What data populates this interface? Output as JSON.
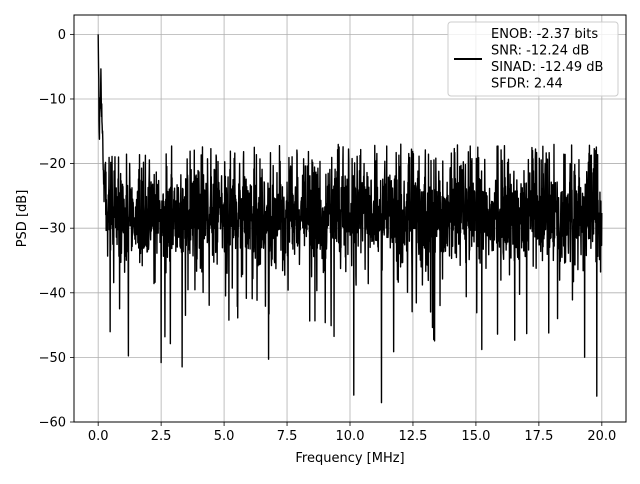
{
  "chart_data": {
    "type": "line",
    "title": "",
    "xlabel": "Frequency [MHz]",
    "ylabel": "PSD [dB]",
    "xlim": [
      -0.96,
      20.96
    ],
    "ylim": [
      -60,
      3
    ],
    "xticks": [
      0.0,
      2.5,
      5.0,
      7.5,
      10.0,
      12.5,
      15.0,
      17.5,
      20.0
    ],
    "xtick_labels": [
      "0.0",
      "2.5",
      "5.0",
      "7.5",
      "10.0",
      "12.5",
      "15.0",
      "17.5",
      "20.0"
    ],
    "yticks": [
      0,
      -10,
      -20,
      -30,
      -40,
      -50,
      -60
    ],
    "ytick_labels": [
      "0",
      "−10",
      "−20",
      "−30",
      "−40",
      "−50",
      "−60"
    ],
    "grid": true,
    "legend_position": "top-right",
    "legend": {
      "entries": [
        "ENOB: -2.37 bits",
        "SNR: -12.24 dB",
        "SINAD: -12.49 dB",
        "SFDR: 2.44"
      ]
    },
    "series": [
      {
        "color": "#000000",
        "description_points": {
          "x": [
            0.0,
            0.02,
            0.05,
            0.1,
            0.15,
            0.2,
            0.3,
            0.5,
            1.0,
            2.0,
            3.0,
            5.0,
            7.5,
            10.0,
            11.25,
            12.5,
            15.0,
            17.5,
            19.8,
            20.0
          ],
          "y": [
            0.0,
            -8.5,
            -16.0,
            -7.8,
            -13.5,
            -20.5,
            -22.0,
            -27.0,
            -28.0,
            -28.0,
            -28.0,
            -28.0,
            -28.0,
            -28.0,
            -57.0,
            -28.0,
            -28.0,
            -28.0,
            -56.0,
            -28.0
          ]
        },
        "peaks": [
          {
            "x": 0.0,
            "y": 0.0
          },
          {
            "x": 0.1,
            "y": -7.8
          },
          {
            "x": 0.15,
            "y": -13.5
          },
          {
            "x": 2.5,
            "y": -50.8
          },
          {
            "x": 11.25,
            "y": -57.0
          },
          {
            "x": 19.8,
            "y": -56.0
          }
        ]
      }
    ]
  }
}
